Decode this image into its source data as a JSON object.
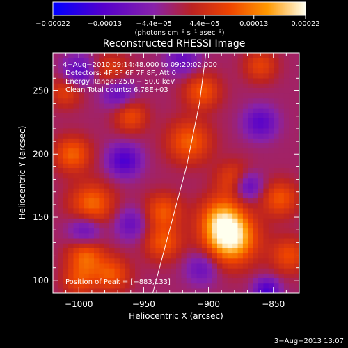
{
  "chart_data": {
    "type": "heatmap",
    "title": "Reconstructed RHESSI Image",
    "xlabel": "Heliocentric X (arcsec)",
    "ylabel": "Heliocentric Y (arcsec)",
    "xlim": [
      -1020,
      -830
    ],
    "ylim": [
      90,
      280
    ],
    "x_ticks": [
      -1000,
      -950,
      -900,
      -850
    ],
    "y_ticks": [
      100,
      150,
      200,
      250
    ],
    "x_tick_labels": [
      "−1000",
      "−950",
      "−900",
      "−850"
    ],
    "y_tick_labels": [
      "100",
      "150",
      "200",
      "250"
    ],
    "colorbar": {
      "ticks": [
        -0.00022,
        -0.00013,
        -4.4e-05,
        4.4e-05,
        0.00013,
        0.00022
      ],
      "tick_labels": [
        "−0.00022",
        "−0.00013",
        "−4.4e−05",
        "4.4e−05",
        "0.00013",
        "0.00022"
      ],
      "units": "(photons cm⁻² s⁻¹ asec⁻²)",
      "colors": [
        "#0000ff",
        "#5500cc",
        "#8822aa",
        "#bb2222",
        "#ee4400",
        "#ff9900",
        "#ffffee"
      ]
    },
    "annotations": {
      "time_range": "4−Aug−2010 09:14:48.000 to 09:20:02.000",
      "detectors": "Detectors: 4F 5F 6F 7F 8F, Att 0",
      "energy": "Energy Range: 25.0 − 50.0 keV",
      "clean": "Clean     Total counts: 6.78E+03",
      "peak": "Position of Peak = [−883,133]"
    },
    "hotspots": [
      {
        "x": -883,
        "y": 133,
        "v": 1.0,
        "s": 14
      },
      {
        "x": -890,
        "y": 150,
        "v": 0.6,
        "s": 12
      },
      {
        "x": -990,
        "y": 160,
        "v": 0.6,
        "s": 12
      },
      {
        "x": -995,
        "y": 120,
        "v": 0.55,
        "s": 10
      },
      {
        "x": -975,
        "y": 105,
        "v": 0.5,
        "s": 10
      },
      {
        "x": -1005,
        "y": 200,
        "v": 0.55,
        "s": 10
      },
      {
        "x": -915,
        "y": 210,
        "v": 0.55,
        "s": 12
      },
      {
        "x": -905,
        "y": 250,
        "v": 0.5,
        "s": 10
      },
      {
        "x": -880,
        "y": 180,
        "v": 0.45,
        "s": 10
      },
      {
        "x": -845,
        "y": 165,
        "v": 0.5,
        "s": 10
      },
      {
        "x": -838,
        "y": 120,
        "v": 0.45,
        "s": 10
      },
      {
        "x": -960,
        "y": 230,
        "v": 0.45,
        "s": 9
      },
      {
        "x": -935,
        "y": 130,
        "v": 0.5,
        "s": 10
      },
      {
        "x": -935,
        "y": 155,
        "v": 0.5,
        "s": 10
      },
      {
        "x": -975,
        "y": 265,
        "v": 0.4,
        "s": 10
      },
      {
        "x": -1010,
        "y": 250,
        "v": 0.4,
        "s": 9
      },
      {
        "x": -860,
        "y": 270,
        "v": 0.4,
        "s": 9
      },
      {
        "x": -1000,
        "y": 100,
        "v": 0.4,
        "s": 9
      },
      {
        "x": -1000,
        "y": 265,
        "v": -0.5,
        "s": 9
      },
      {
        "x": -970,
        "y": 250,
        "v": -0.5,
        "s": 9
      },
      {
        "x": -965,
        "y": 195,
        "v": -0.6,
        "s": 9
      },
      {
        "x": -870,
        "y": 175,
        "v": -0.6,
        "s": 8
      },
      {
        "x": -860,
        "y": 225,
        "v": -0.5,
        "s": 9
      },
      {
        "x": -995,
        "y": 140,
        "v": -0.5,
        "s": 9
      },
      {
        "x": -960,
        "y": 145,
        "v": -0.4,
        "s": 9
      },
      {
        "x": -905,
        "y": 110,
        "v": -0.4,
        "s": 9
      },
      {
        "x": -855,
        "y": 92,
        "v": -0.6,
        "s": 7
      },
      {
        "x": -920,
        "y": 275,
        "v": -0.4,
        "s": 9
      }
    ],
    "limb": [
      [
        -943,
        90
      ],
      [
        -930,
        140
      ],
      [
        -917,
        190
      ],
      [
        -907,
        240
      ],
      [
        -902,
        280
      ]
    ]
  },
  "footer_timestamp": "3−Aug−2013 13:07"
}
